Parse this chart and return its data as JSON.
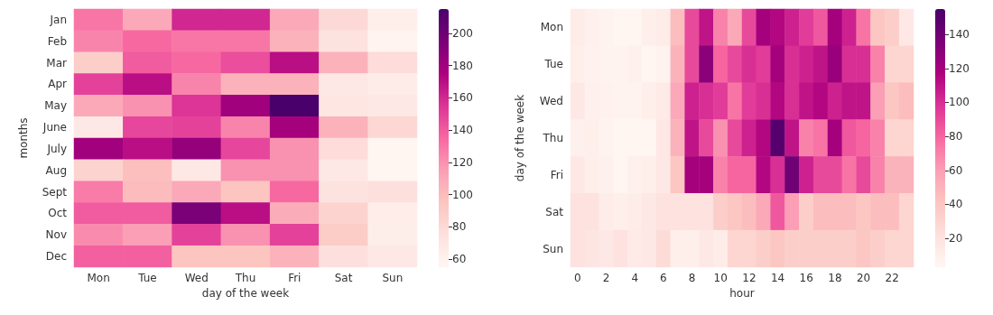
{
  "chart_data": [
    {
      "type": "heatmap",
      "xlabel": "day of the week",
      "ylabel": "months",
      "categories": [
        "Mon",
        "Tue",
        "Wed",
        "Thu",
        "Fri",
        "Sat",
        "Sun"
      ],
      "y_categories": [
        "Jan",
        "Feb",
        "Mar",
        "Apr",
        "May",
        "June",
        "July",
        "Aug",
        "Sept",
        "Oct",
        "Nov",
        "Dec"
      ],
      "cells": [
        [
          130,
          110,
          160,
          160,
          110,
          80,
          62
        ],
        [
          125,
          135,
          130,
          130,
          105,
          72,
          58
        ],
        [
          88,
          140,
          135,
          145,
          170,
          105,
          78
        ],
        [
          150,
          170,
          125,
          105,
          105,
          68,
          65
        ],
        [
          110,
          120,
          155,
          180,
          215,
          70,
          68
        ],
        [
          68,
          148,
          150,
          125,
          178,
          105,
          82
        ],
        [
          180,
          170,
          185,
          148,
          120,
          78,
          57
        ],
        [
          85,
          98,
          68,
          120,
          120,
          68,
          56
        ],
        [
          128,
          100,
          110,
          95,
          135,
          72,
          75
        ],
        [
          140,
          140,
          195,
          170,
          108,
          85,
          64
        ],
        [
          122,
          115,
          150,
          120,
          150,
          90,
          63
        ],
        [
          138,
          138,
          95,
          95,
          105,
          75,
          68
        ]
      ],
      "clim": [
        55,
        215
      ],
      "cticks": [
        60,
        80,
        100,
        120,
        140,
        160,
        180,
        200
      ]
    },
    {
      "type": "heatmap",
      "xlabel": "hour",
      "ylabel": "day of the week",
      "categories": [
        "0",
        null,
        "2",
        null,
        "4",
        null,
        "6",
        null,
        "8",
        null,
        "10",
        null,
        "12",
        null,
        "14",
        null,
        "16",
        null,
        "18",
        null,
        "20",
        null,
        "22",
        null
      ],
      "y_categories": [
        "Mon",
        "Tue",
        "Wed",
        "Thu",
        "Fri",
        "Sat",
        "Sun"
      ],
      "cells": [
        [
          12,
          8,
          6,
          5,
          5,
          10,
          12,
          45,
          90,
          110,
          70,
          55,
          90,
          120,
          115,
          105,
          95,
          85,
          120,
          105,
          75,
          40,
          35,
          15
        ],
        [
          10,
          7,
          6,
          6,
          9,
          5,
          6,
          50,
          90,
          130,
          80,
          90,
          100,
          95,
          120,
          100,
          105,
          110,
          125,
          100,
          100,
          70,
          30,
          30
        ],
        [
          15,
          8,
          7,
          6,
          6,
          10,
          14,
          55,
          105,
          100,
          95,
          75,
          95,
          100,
          115,
          100,
          110,
          115,
          105,
          110,
          110,
          60,
          40,
          45
        ],
        [
          8,
          10,
          6,
          5,
          4,
          5,
          15,
          50,
          110,
          90,
          65,
          90,
          105,
          115,
          150,
          110,
          70,
          75,
          120,
          85,
          80,
          70,
          30,
          30
        ],
        [
          15,
          10,
          8,
          5,
          8,
          10,
          15,
          40,
          120,
          120,
          70,
          80,
          80,
          115,
          100,
          140,
          105,
          90,
          90,
          75,
          90,
          70,
          50,
          50
        ],
        [
          20,
          20,
          12,
          10,
          12,
          15,
          20,
          20,
          20,
          20,
          35,
          40,
          45,
          55,
          85,
          60,
          35,
          45,
          45,
          45,
          40,
          45,
          45,
          30
        ],
        [
          20,
          18,
          15,
          20,
          14,
          15,
          25,
          10,
          10,
          15,
          12,
          30,
          30,
          35,
          40,
          35,
          35,
          35,
          35,
          35,
          40,
          35,
          30,
          30
        ]
      ],
      "clim": [
        3,
        155
      ],
      "cticks": [
        20,
        40,
        60,
        80,
        100,
        120,
        140
      ]
    }
  ]
}
